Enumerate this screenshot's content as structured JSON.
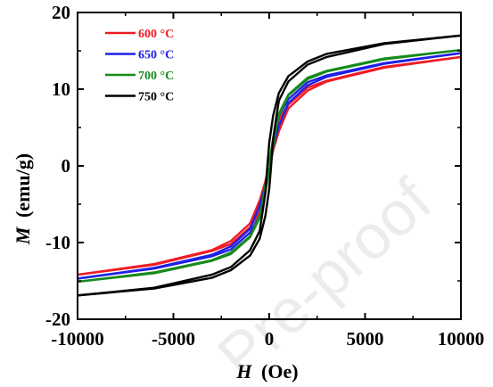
{
  "chart_data": {
    "type": "line",
    "title": "",
    "xlabel": {
      "symbol": "H",
      "unit": "(Oe)"
    },
    "ylabel": {
      "symbol": "M",
      "unit": "(emu/g)"
    },
    "xlim": [
      -10000,
      10000
    ],
    "ylim": [
      -20,
      20
    ],
    "xticks": [
      -10000,
      -5000,
      0,
      5000,
      10000
    ],
    "yticks": [
      -20,
      -10,
      0,
      10,
      20
    ],
    "xtick_labels": [
      "-10000",
      "-5000",
      "0",
      "5000",
      "10000"
    ],
    "ytick_labels": [
      "-20",
      "-10",
      "0",
      "10",
      "20"
    ],
    "grid": false,
    "legend_position": "top-left",
    "watermark": "Pre-proof",
    "series": [
      {
        "name": "600 °C",
        "color": "#ee1c25",
        "branch_down": [
          [
            10000,
            14.2
          ],
          [
            6000,
            12.8
          ],
          [
            3000,
            11.0
          ],
          [
            2000,
            9.8
          ],
          [
            1000,
            7.5
          ],
          [
            500,
            4.5
          ],
          [
            200,
            2.0
          ],
          [
            0,
            -0.5
          ],
          [
            -200,
            -2.5
          ],
          [
            -500,
            -6.0
          ],
          [
            -1000,
            -8.0
          ],
          [
            -2000,
            -10.2
          ],
          [
            -3000,
            -11.1
          ],
          [
            -6000,
            -12.9
          ],
          [
            -10000,
            -14.2
          ]
        ],
        "branch_up": [
          [
            -10000,
            -14.2
          ],
          [
            -6000,
            -12.8
          ],
          [
            -3000,
            -11.0
          ],
          [
            -2000,
            -9.8
          ],
          [
            -1000,
            -7.5
          ],
          [
            -500,
            -4.5
          ],
          [
            -200,
            -2.0
          ],
          [
            0,
            0.5
          ],
          [
            200,
            2.5
          ],
          [
            500,
            6.0
          ],
          [
            1000,
            8.0
          ],
          [
            2000,
            10.2
          ],
          [
            3000,
            11.1
          ],
          [
            6000,
            12.9
          ],
          [
            10000,
            14.2
          ]
        ]
      },
      {
        "name": "650 °C",
        "color": "#1f1fe6",
        "branch_down": [
          [
            10000,
            14.7
          ],
          [
            6000,
            13.3
          ],
          [
            3000,
            11.6
          ],
          [
            2000,
            10.5
          ],
          [
            1000,
            8.2
          ],
          [
            500,
            5.2
          ],
          [
            200,
            2.5
          ],
          [
            0,
            -0.3
          ],
          [
            -200,
            -2.8
          ],
          [
            -500,
            -6.5
          ],
          [
            -1000,
            -8.7
          ],
          [
            -2000,
            -10.9
          ],
          [
            -3000,
            -11.8
          ],
          [
            -6000,
            -13.4
          ],
          [
            -10000,
            -14.7
          ]
        ],
        "branch_up": [
          [
            -10000,
            -14.7
          ],
          [
            -6000,
            -13.3
          ],
          [
            -3000,
            -11.6
          ],
          [
            -2000,
            -10.5
          ],
          [
            -1000,
            -8.2
          ],
          [
            -500,
            -5.2
          ],
          [
            -200,
            -2.5
          ],
          [
            0,
            0.3
          ],
          [
            200,
            2.8
          ],
          [
            500,
            6.5
          ],
          [
            1000,
            8.7
          ],
          [
            2000,
            10.9
          ],
          [
            3000,
            11.8
          ],
          [
            6000,
            13.4
          ],
          [
            10000,
            14.7
          ]
        ]
      },
      {
        "name": "700 °C",
        "color": "#178a1c",
        "branch_down": [
          [
            10000,
            15.1
          ],
          [
            6000,
            13.9
          ],
          [
            3000,
            12.3
          ],
          [
            2000,
            11.3
          ],
          [
            1000,
            9.2
          ],
          [
            500,
            6.5
          ],
          [
            200,
            3.5
          ],
          [
            0,
            0.5
          ],
          [
            -200,
            -2.5
          ],
          [
            -500,
            -6.8
          ],
          [
            -1000,
            -9.3
          ],
          [
            -2000,
            -11.5
          ],
          [
            -3000,
            -12.4
          ],
          [
            -6000,
            -14.0
          ],
          [
            -10000,
            -15.1
          ]
        ],
        "branch_up": [
          [
            -10000,
            -15.1
          ],
          [
            -6000,
            -13.9
          ],
          [
            -3000,
            -12.3
          ],
          [
            -2000,
            -11.3
          ],
          [
            -1000,
            -9.2
          ],
          [
            -500,
            -6.5
          ],
          [
            -200,
            -3.5
          ],
          [
            0,
            -0.5
          ],
          [
            200,
            2.5
          ],
          [
            500,
            6.8
          ],
          [
            1000,
            9.3
          ],
          [
            2000,
            11.5
          ],
          [
            3000,
            12.4
          ],
          [
            6000,
            14.0
          ],
          [
            10000,
            15.1
          ]
        ]
      },
      {
        "name": "750 °C",
        "color": "#000000",
        "branch_down": [
          [
            10000,
            17.0
          ],
          [
            6000,
            16.0
          ],
          [
            3000,
            14.6
          ],
          [
            2000,
            13.6
          ],
          [
            1000,
            11.7
          ],
          [
            500,
            9.5
          ],
          [
            200,
            6.5
          ],
          [
            0,
            3.0
          ],
          [
            -100,
            0.0
          ],
          [
            -200,
            -3.5
          ],
          [
            -500,
            -8.5
          ],
          [
            -1000,
            -11.0
          ],
          [
            -2000,
            -13.2
          ],
          [
            -3000,
            -14.2
          ],
          [
            -6000,
            -15.9
          ],
          [
            -10000,
            -16.9
          ]
        ],
        "branch_up": [
          [
            -10000,
            -16.9
          ],
          [
            -6000,
            -16.0
          ],
          [
            -3000,
            -14.6
          ],
          [
            -2000,
            -13.6
          ],
          [
            -1000,
            -11.7
          ],
          [
            -500,
            -9.5
          ],
          [
            -200,
            -6.5
          ],
          [
            0,
            -3.0
          ],
          [
            100,
            0.0
          ],
          [
            200,
            3.5
          ],
          [
            500,
            8.5
          ],
          [
            1000,
            11.0
          ],
          [
            2000,
            13.2
          ],
          [
            3000,
            14.2
          ],
          [
            6000,
            15.9
          ],
          [
            10000,
            17.0
          ]
        ]
      }
    ]
  }
}
